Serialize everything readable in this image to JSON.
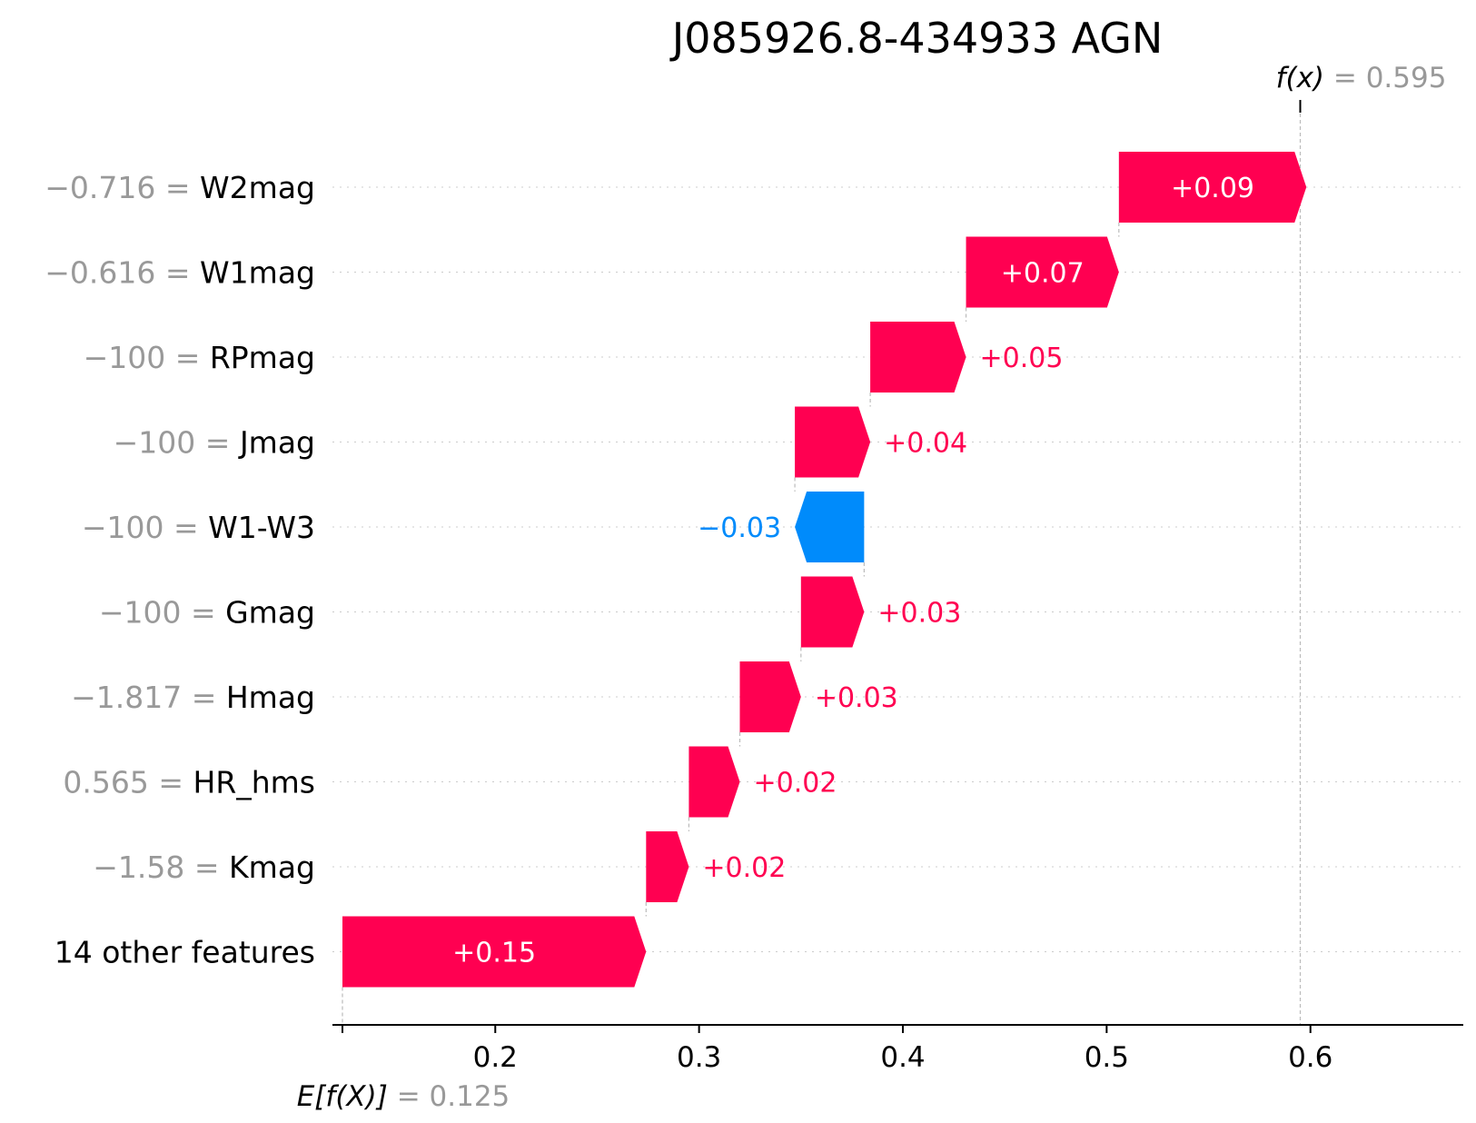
{
  "chart_data": {
    "type": "waterfall",
    "title": "J085926.8-434933 AGN",
    "base_value": 0.125,
    "base_label_prefix": "E[f(X)]",
    "base_label_value": "= 0.125",
    "output_value": 0.595,
    "output_label_prefix": "f(x)",
    "output_label_value": "= 0.595",
    "xlim": [
      0.125,
      0.675
    ],
    "xticks": [
      0.2,
      0.3,
      0.4,
      0.5,
      0.6
    ],
    "xtick_labels": [
      "0.2",
      "0.3",
      "0.4",
      "0.5",
      "0.6"
    ],
    "features": [
      {
        "value": "−0.716 =",
        "name": "W2mag",
        "contribution": 0.092,
        "label": "+0.09"
      },
      {
        "value": "−0.616 =",
        "name": "W1mag",
        "contribution": 0.075,
        "label": "+0.07"
      },
      {
        "value": "−100 =",
        "name": "RPmag",
        "contribution": 0.047,
        "label": "+0.05"
      },
      {
        "value": "−100 =",
        "name": "Jmag",
        "contribution": 0.037,
        "label": "+0.04"
      },
      {
        "value": "−100 =",
        "name": "W1-W3",
        "contribution": -0.034,
        "label": "−0.03"
      },
      {
        "value": "−100 =",
        "name": "Gmag",
        "contribution": 0.031,
        "label": "+0.03"
      },
      {
        "value": "−1.817 =",
        "name": "Hmag",
        "contribution": 0.03,
        "label": "+0.03"
      },
      {
        "value": "0.565 =",
        "name": "HR_hms",
        "contribution": 0.025,
        "label": "+0.02"
      },
      {
        "value": "−1.58 =",
        "name": "Kmag",
        "contribution": 0.021,
        "label": "+0.02"
      },
      {
        "value": "",
        "name": "14 other features",
        "contribution": 0.149,
        "label": "+0.15"
      }
    ],
    "colors": {
      "positive": "#ff0051",
      "negative": "#008bfb",
      "text_muted": "#999999"
    }
  }
}
